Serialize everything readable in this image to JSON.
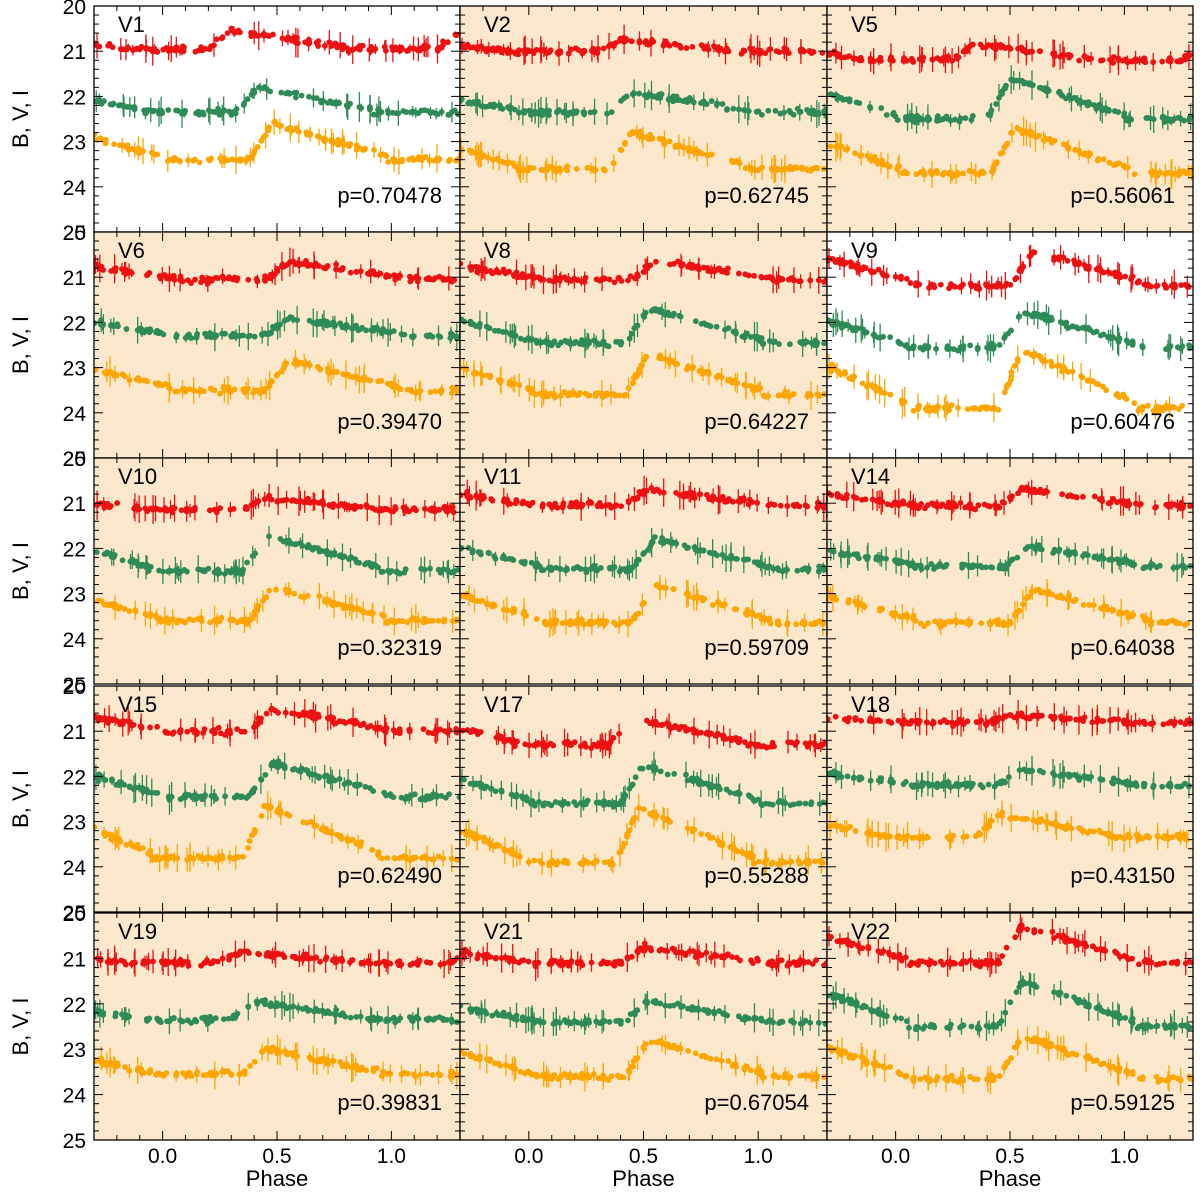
{
  "chart_data": {
    "type": "scatter",
    "xlabel": "Phase",
    "ylabel": "B, V, I",
    "xlim": [
      -0.3,
      1.3
    ],
    "ylim": [
      25,
      20
    ],
    "xticks": [
      "0.0",
      "0.5",
      "1.0"
    ],
    "yticks": [
      "20",
      "21",
      "22",
      "23",
      "24",
      "25"
    ],
    "series_colors": {
      "I": "#ee1111",
      "V": "#2e8b57",
      "B": "#ffa500"
    },
    "panel_bg": {
      "shaded": "#fbe8cc",
      "plain": "#ffffff"
    },
    "panels": [
      {
        "id": "V1",
        "period": "p=0.70478",
        "shaded": false,
        "I": [
          20.55,
          20.95,
          0.3
        ],
        "V": [
          21.8,
          22.35,
          0.42
        ],
        "B": [
          22.6,
          23.4,
          0.48
        ]
      },
      {
        "id": "V2",
        "period": "p=0.62745",
        "shaded": true,
        "I": [
          20.75,
          21.0,
          0.4
        ],
        "V": [
          21.9,
          22.35,
          0.45
        ],
        "B": [
          22.8,
          23.6,
          0.45
        ]
      },
      {
        "id": "V5",
        "period": "p=0.56061",
        "shaded": true,
        "I": [
          20.85,
          21.2,
          0.35
        ],
        "V": [
          21.6,
          22.5,
          0.5
        ],
        "B": [
          22.7,
          23.7,
          0.52
        ]
      },
      {
        "id": "V6",
        "period": "p=0.39470",
        "shaded": true,
        "I": [
          20.65,
          21.05,
          0.55
        ],
        "V": [
          21.9,
          22.3,
          0.55
        ],
        "B": [
          22.85,
          23.5,
          0.55
        ]
      },
      {
        "id": "V8",
        "period": "p=0.64227",
        "shaded": true,
        "I": [
          20.65,
          21.05,
          0.55
        ],
        "V": [
          21.7,
          22.45,
          0.52
        ],
        "B": [
          22.7,
          23.6,
          0.52
        ]
      },
      {
        "id": "V9",
        "period": "p=0.60476",
        "shaded": false,
        "I": [
          20.45,
          21.2,
          0.6
        ],
        "V": [
          21.75,
          22.55,
          0.55
        ],
        "B": [
          22.6,
          23.9,
          0.55
        ]
      },
      {
        "id": "V10",
        "period": "p=0.32319",
        "shaded": true,
        "I": [
          20.9,
          21.15,
          0.45
        ],
        "V": [
          21.7,
          22.5,
          0.45
        ],
        "B": [
          22.85,
          23.6,
          0.48
        ]
      },
      {
        "id": "V11",
        "period": "p=0.59709",
        "shaded": true,
        "I": [
          20.7,
          21.05,
          0.52
        ],
        "V": [
          21.8,
          22.45,
          0.55
        ],
        "B": [
          22.8,
          23.65,
          0.55
        ]
      },
      {
        "id": "V14",
        "period": "p=0.64038",
        "shaded": true,
        "I": [
          20.7,
          21.05,
          0.55
        ],
        "V": [
          21.95,
          22.4,
          0.58
        ],
        "B": [
          22.9,
          23.65,
          0.6
        ]
      },
      {
        "id": "V15",
        "period": "p=0.62490",
        "shaded": true,
        "I": [
          20.5,
          21.0,
          0.48
        ],
        "V": [
          21.7,
          22.45,
          0.48
        ],
        "B": [
          22.65,
          23.8,
          0.45
        ]
      },
      {
        "id": "V17",
        "period": "p=0.55288",
        "shaded": true,
        "I": [
          20.7,
          21.3,
          0.45
        ],
        "V": [
          21.75,
          22.6,
          0.5
        ],
        "B": [
          22.7,
          23.9,
          0.48
        ]
      },
      {
        "id": "V18",
        "period": "p=0.43150",
        "shaded": true,
        "I": [
          20.65,
          20.8,
          0.5
        ],
        "V": [
          21.85,
          22.2,
          0.55
        ],
        "B": [
          22.85,
          23.35,
          0.45
        ]
      },
      {
        "id": "V19",
        "period": "p=0.39831",
        "shaded": true,
        "I": [
          20.85,
          21.1,
          0.35
        ],
        "V": [
          21.95,
          22.35,
          0.4
        ],
        "B": [
          23.0,
          23.55,
          0.45
        ]
      },
      {
        "id": "V21",
        "period": "p=0.67054",
        "shaded": true,
        "I": [
          20.75,
          21.1,
          0.5
        ],
        "V": [
          21.95,
          22.4,
          0.52
        ],
        "B": [
          22.8,
          23.6,
          0.52
        ]
      },
      {
        "id": "V22",
        "period": "p=0.59125",
        "shaded": true,
        "I": [
          20.3,
          21.1,
          0.55
        ],
        "V": [
          21.5,
          22.5,
          0.55
        ],
        "B": [
          22.7,
          23.65,
          0.55
        ]
      }
    ]
  }
}
